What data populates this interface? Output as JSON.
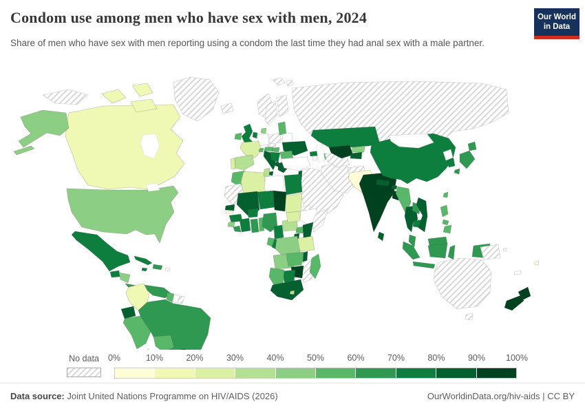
{
  "header": {
    "title": "Condom use among men who have sex with men, 2024",
    "subtitle": "Share of men who have sex with men reporting using a condom the last time they had anal sex with a male partner.",
    "logo": {
      "line1": "Our World",
      "line2": "in Data",
      "bg_color": "#16315c",
      "accent_color": "#cf2d20"
    }
  },
  "legend": {
    "no_data_label": "No data",
    "tick_labels": [
      "0%",
      "10%",
      "20%",
      "30%",
      "40%",
      "50%",
      "60%",
      "70%",
      "80%",
      "90%",
      "100%"
    ],
    "bin_colors": [
      "#fdfdd8",
      "#f0f9b4",
      "#dcf0a4",
      "#b4e093",
      "#8cce84",
      "#58b768",
      "#2f9851",
      "#0d7e3d",
      "#05602f",
      "#00421f"
    ],
    "hatch_color": "#cfcfcf"
  },
  "footer": {
    "source_label": "Data source:",
    "source_text": " Joint United Nations Programme on HIV/AIDS (2026)",
    "rights": "OurWorldinData.org/hiv-aids | CC BY"
  },
  "chart_data": {
    "type": "choropleth-map",
    "title": "Condom use among men who have sex with men, 2024",
    "unit": "% of men who have sex with men reporting condom use at last anal sex with a male partner",
    "bin_labels": [
      "0-10%",
      "10-20%",
      "20-30%",
      "30-40%",
      "40-50%",
      "50-60%",
      "60-70%",
      "70-80%",
      "80-90%",
      "90-100%"
    ],
    "legend_note": "bin is an index into legend.bin_colors; no-data = hatched; blank = plain white outline",
    "regions": [
      {
        "id": "greenland",
        "name": "Greenland",
        "bin": "no-data"
      },
      {
        "id": "iceland",
        "name": "Iceland",
        "bin": "no-data"
      },
      {
        "id": "svalbard",
        "name": "Svalbard",
        "bin": "no-data"
      },
      {
        "id": "russia",
        "name": "Russia",
        "bin": "no-data"
      },
      {
        "id": "canada",
        "name": "Canada",
        "bin": 1
      },
      {
        "id": "usa",
        "name": "United States",
        "bin": 4
      },
      {
        "id": "mexico",
        "name": "Mexico",
        "bin": 7
      },
      {
        "id": "guatemala",
        "name": "Guatemala",
        "bin": 7
      },
      {
        "id": "honduras-nicaragua",
        "name": "Honduras & Nicaragua",
        "bin": 4
      },
      {
        "id": "costa-rica-panama",
        "name": "Costa Rica & Panama",
        "bin": 6
      },
      {
        "id": "cuba",
        "name": "Cuba",
        "bin": 7
      },
      {
        "id": "jamaica",
        "name": "Jamaica",
        "bin": 7
      },
      {
        "id": "hispaniola",
        "name": "Haiti & Dominican Republic",
        "bin": 6
      },
      {
        "id": "puerto-rico",
        "name": "Puerto Rico",
        "bin": "blank"
      },
      {
        "id": "colombia",
        "name": "Colombia",
        "bin": 1
      },
      {
        "id": "venezuela",
        "name": "Venezuela",
        "bin": 6
      },
      {
        "id": "guyana",
        "name": "Guyana",
        "bin": 5
      },
      {
        "id": "suriname",
        "name": "Suriname",
        "bin": "blank"
      },
      {
        "id": "french-guiana",
        "name": "French Guiana",
        "bin": "no-data"
      },
      {
        "id": "ecuador",
        "name": "Ecuador",
        "bin": 8
      },
      {
        "id": "peru",
        "name": "Peru",
        "bin": 5
      },
      {
        "id": "brazil",
        "name": "Brazil",
        "bin": 6
      },
      {
        "id": "bolivia",
        "name": "Bolivia",
        "bin": 5
      },
      {
        "id": "paraguay",
        "name": "Paraguay",
        "bin": 9
      },
      {
        "id": "uruguay",
        "name": "Uruguay",
        "bin": 5
      },
      {
        "id": "argentina",
        "name": "Argentina",
        "bin": "no-data"
      },
      {
        "id": "chile",
        "name": "Chile",
        "bin": 5
      },
      {
        "id": "ireland",
        "name": "Ireland",
        "bin": 5
      },
      {
        "id": "uk",
        "name": "United Kingdom",
        "bin": 7
      },
      {
        "id": "norway",
        "name": "Norway",
        "bin": "no-data"
      },
      {
        "id": "sweden",
        "name": "Sweden",
        "bin": "no-data"
      },
      {
        "id": "finland",
        "name": "Finland",
        "bin": "no-data"
      },
      {
        "id": "denmark",
        "name": "Denmark",
        "bin": 4
      },
      {
        "id": "germany",
        "name": "Germany",
        "bin": "blank"
      },
      {
        "id": "netherlands",
        "name": "Netherlands & Belgium",
        "bin": 7
      },
      {
        "id": "france",
        "name": "France",
        "bin": 2
      },
      {
        "id": "portugal",
        "name": "Portugal",
        "bin": 2
      },
      {
        "id": "spain",
        "name": "Spain",
        "bin": 3
      },
      {
        "id": "italy",
        "name": "Italy",
        "bin": 8
      },
      {
        "id": "switzerland",
        "name": "Switzerland",
        "bin": 5
      },
      {
        "id": "austria",
        "name": "Austria",
        "bin": 5
      },
      {
        "id": "czechia",
        "name": "Czechia",
        "bin": "no-data"
      },
      {
        "id": "poland",
        "name": "Poland",
        "bin": "no-data"
      },
      {
        "id": "baltics",
        "name": "Baltic states",
        "bin": 5
      },
      {
        "id": "belarus",
        "name": "Belarus",
        "bin": "blank"
      },
      {
        "id": "ukraine",
        "name": "Ukraine",
        "bin": 8
      },
      {
        "id": "hungary",
        "name": "Hungary",
        "bin": 5
      },
      {
        "id": "romania",
        "name": "Romania",
        "bin": 5
      },
      {
        "id": "bulgaria",
        "name": "Bulgaria",
        "bin": 5
      },
      {
        "id": "balkans",
        "name": "Croatia & Serbia",
        "bin": 7
      },
      {
        "id": "albania",
        "name": "Albania",
        "bin": 8
      },
      {
        "id": "greece",
        "name": "Greece",
        "bin": 8
      },
      {
        "id": "turkey",
        "name": "Turkey",
        "bin": "blank"
      },
      {
        "id": "georgia",
        "name": "Georgia",
        "bin": 7
      },
      {
        "id": "armenia",
        "name": "Armenia",
        "bin": "blank"
      },
      {
        "id": "azerbaijan",
        "name": "Azerbaijan",
        "bin": 5
      },
      {
        "id": "israel-lebanon",
        "name": "Israel & Lebanon",
        "bin": 8
      },
      {
        "id": "arabia",
        "name": "Saudi Arabia & Gulf states",
        "bin": "no-data"
      },
      {
        "id": "iran",
        "name": "Iran",
        "bin": "no-data"
      },
      {
        "id": "afghanistan",
        "name": "Afghanistan",
        "bin": "no-data"
      },
      {
        "id": "turkmenistan",
        "name": "Turkmenistan",
        "bin": "no-data"
      },
      {
        "id": "uzbekistan",
        "name": "Uzbekistan",
        "bin": 9
      },
      {
        "id": "kyrgyzstan",
        "name": "Kyrgyzstan",
        "bin": 4
      },
      {
        "id": "tajikistan",
        "name": "Tajikistan",
        "bin": 8
      },
      {
        "id": "kazakhstan",
        "name": "Kazakhstan",
        "bin": 7
      },
      {
        "id": "pakistan",
        "name": "Pakistan",
        "bin": 0
      },
      {
        "id": "india",
        "name": "India",
        "bin": 9
      },
      {
        "id": "nepal",
        "name": "Nepal",
        "bin": 8
      },
      {
        "id": "bhutan",
        "name": "Bhutan",
        "bin": 8
      },
      {
        "id": "bangladesh",
        "name": "Bangladesh",
        "bin": 9
      },
      {
        "id": "sri-lanka",
        "name": "Sri Lanka",
        "bin": 8
      },
      {
        "id": "china",
        "name": "China",
        "bin": 7
      },
      {
        "id": "mongolia",
        "name": "Mongolia",
        "bin": "blank"
      },
      {
        "id": "north-korea",
        "name": "North Korea",
        "bin": "blank"
      },
      {
        "id": "south-korea",
        "name": "South Korea",
        "bin": 7
      },
      {
        "id": "japan",
        "name": "Japan",
        "bin": 6
      },
      {
        "id": "taiwan",
        "name": "Taiwan",
        "bin": 5
      },
      {
        "id": "myanmar",
        "name": "Myanmar",
        "bin": 5
      },
      {
        "id": "thailand",
        "name": "Thailand",
        "bin": 8
      },
      {
        "id": "laos",
        "name": "Laos",
        "bin": 6
      },
      {
        "id": "cambodia",
        "name": "Cambodia",
        "bin": 7
      },
      {
        "id": "vietnam",
        "name": "Vietnam",
        "bin": 8
      },
      {
        "id": "malaysia",
        "name": "Malaysia",
        "bin": 6
      },
      {
        "id": "indonesia",
        "name": "Indonesia",
        "bin": 6
      },
      {
        "id": "philippines",
        "name": "Philippines",
        "bin": 5
      },
      {
        "id": "png",
        "name": "Papua New Guinea",
        "bin": "no-data"
      },
      {
        "id": "solomon",
        "name": "Solomon Islands",
        "bin": "no-data"
      },
      {
        "id": "australia",
        "name": "Australia",
        "bin": "no-data"
      },
      {
        "id": "new-zealand",
        "name": "New Zealand",
        "bin": 9
      },
      {
        "id": "fiji",
        "name": "Fiji",
        "bin": 0
      },
      {
        "id": "new-caledonia",
        "name": "New Caledonia",
        "bin": "blank"
      },
      {
        "id": "morocco",
        "name": "Morocco",
        "bin": 5
      },
      {
        "id": "western-sahara",
        "name": "Western Sahara & Mauritania",
        "bin": "no-data"
      },
      {
        "id": "algeria",
        "name": "Algeria",
        "bin": 2
      },
      {
        "id": "tunisia",
        "name": "Tunisia",
        "bin": 3
      },
      {
        "id": "libya",
        "name": "Libya",
        "bin": "blank"
      },
      {
        "id": "egypt",
        "name": "Egypt",
        "bin": 7
      },
      {
        "id": "sudan",
        "name": "Sudan",
        "bin": 2
      },
      {
        "id": "eritrea",
        "name": "Eritrea & Djibouti",
        "bin": "no-data"
      },
      {
        "id": "ethiopia",
        "name": "Ethiopia",
        "bin": "blank"
      },
      {
        "id": "somalia",
        "name": "Somalia",
        "bin": "no-data"
      },
      {
        "id": "mali",
        "name": "Mali",
        "bin": 8
      },
      {
        "id": "niger",
        "name": "Niger",
        "bin": 7
      },
      {
        "id": "chad",
        "name": "Chad",
        "bin": 9
      },
      {
        "id": "senegal",
        "name": "Senegal",
        "bin": 8
      },
      {
        "id": "gambia",
        "name": "Gambia",
        "bin": 0
      },
      {
        "id": "guinea",
        "name": "Guinea",
        "bin": 7
      },
      {
        "id": "sierra-leone",
        "name": "Sierra Leone",
        "bin": 4
      },
      {
        "id": "liberia",
        "name": "Liberia",
        "bin": 6
      },
      {
        "id": "ivory-coast",
        "name": "Cote d'Ivoire",
        "bin": 7
      },
      {
        "id": "burkina-faso",
        "name": "Burkina Faso",
        "bin": 7
      },
      {
        "id": "ghana",
        "name": "Ghana",
        "bin": 6
      },
      {
        "id": "togo-benin",
        "name": "Togo & Benin",
        "bin": 5
      },
      {
        "id": "nigeria",
        "name": "Nigeria",
        "bin": 6
      },
      {
        "id": "cameroon",
        "name": "Cameroon",
        "bin": 7
      },
      {
        "id": "car",
        "name": "Central African Republic",
        "bin": 3
      },
      {
        "id": "south-sudan",
        "name": "South Sudan",
        "bin": 2
      },
      {
        "id": "uganda",
        "name": "Uganda",
        "bin": 5
      },
      {
        "id": "kenya",
        "name": "Kenya",
        "bin": 8
      },
      {
        "id": "rwanda-burundi",
        "name": "Rwanda & Burundi",
        "bin": 8
      },
      {
        "id": "tanzania",
        "name": "Tanzania",
        "bin": 2
      },
      {
        "id": "gabon",
        "name": "Gabon",
        "bin": 5
      },
      {
        "id": "congo",
        "name": "Congo",
        "bin": 7
      },
      {
        "id": "drc",
        "name": "Democratic Republic of Congo",
        "bin": 4
      },
      {
        "id": "angola",
        "name": "Angola",
        "bin": 4
      },
      {
        "id": "zambia",
        "name": "Zambia",
        "bin": 5
      },
      {
        "id": "malawi",
        "name": "Malawi",
        "bin": 8
      },
      {
        "id": "mozambique",
        "name": "Mozambique",
        "bin": "no-data"
      },
      {
        "id": "zimbabwe",
        "name": "Zimbabwe",
        "bin": 9
      },
      {
        "id": "botswana",
        "name": "Botswana",
        "bin": 7
      },
      {
        "id": "namibia",
        "name": "Namibia",
        "bin": 5
      },
      {
        "id": "south-africa",
        "name": "South Africa",
        "bin": 8
      },
      {
        "id": "lesotho",
        "name": "Lesotho",
        "bin": 3
      },
      {
        "id": "madagascar",
        "name": "Madagascar",
        "bin": 5
      }
    ]
  }
}
